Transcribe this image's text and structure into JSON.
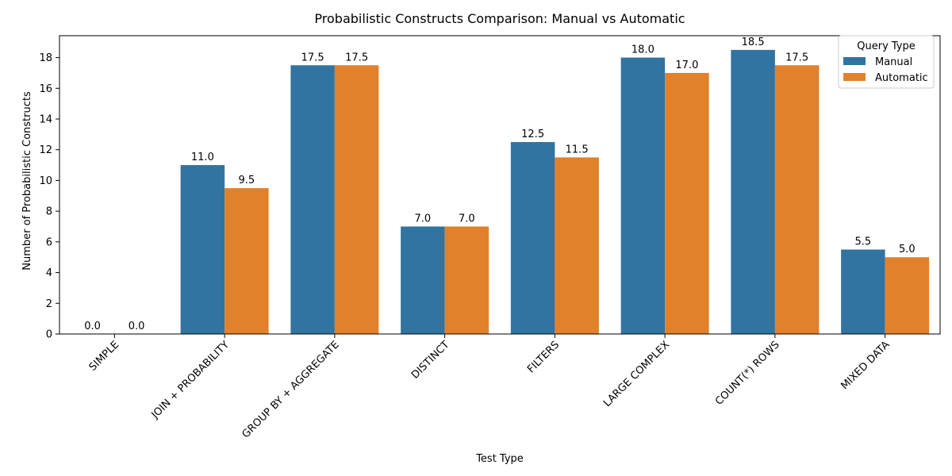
{
  "chart_data": {
    "type": "bar",
    "title": "Probabilistic Constructs Comparison: Manual vs Automatic",
    "xlabel": "Test Type",
    "ylabel": "Number of Probabilistic Constructs",
    "categories": [
      "SIMPLE",
      "JOIN + PROBABILITY",
      "GROUP BY + AGGREGATE",
      "DISTINCT",
      "FILTERS",
      "LARGE COMPLEX",
      "COUNT(*) ROWS",
      "MIXED DATA"
    ],
    "series": [
      {
        "name": "Manual",
        "values": [
          0.0,
          11.0,
          17.5,
          7.0,
          12.5,
          18.0,
          18.5,
          5.5
        ],
        "color": "#3274a1"
      },
      {
        "name": "Automatic",
        "values": [
          0.0,
          9.5,
          17.5,
          7.0,
          11.5,
          17.0,
          17.5,
          5.0
        ],
        "color": "#e1812c"
      }
    ],
    "ylim": [
      0,
      19.425
    ],
    "yticks": [
      0,
      2,
      4,
      6,
      8,
      10,
      12,
      14,
      16,
      18
    ],
    "grid": false,
    "legend": {
      "title": "Query Type",
      "position": "top-right"
    },
    "data_labels": true
  }
}
